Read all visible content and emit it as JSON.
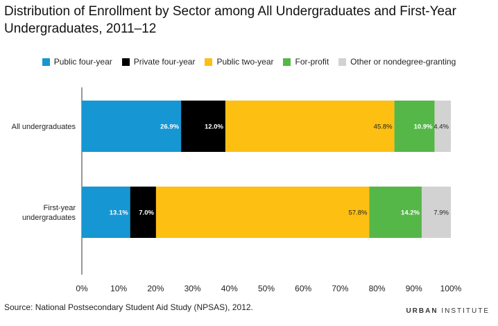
{
  "title": "Distribution of Enrollment by Sector among All Undergraduates and First-Year Undergraduates, 2011–12",
  "source": "Source: National Postsecondary Student Aid Study (NPSAS), 2012.",
  "brand": {
    "bold": "URBAN",
    "light": "INSTITUTE"
  },
  "colors": {
    "Public four-year": "#1696d2",
    "Private four-year": "#000000",
    "Public two-year": "#fdbf11",
    "For-profit": "#55b748",
    "Other or nondegree-granting": "#d2d2d2"
  },
  "chart_data": {
    "type": "bar",
    "orientation": "horizontal",
    "stacked": true,
    "title": "Distribution of Enrollment by Sector among All Undergraduates and First-Year Undergraduates, 2011–12",
    "categories": [
      "All undergraduates",
      "First-year undergraduates"
    ],
    "series": [
      {
        "name": "Public four-year",
        "values": [
          26.9,
          13.1
        ],
        "labels": [
          "26.9%",
          "13.1%"
        ]
      },
      {
        "name": "Private four-year",
        "values": [
          12.0,
          7.0
        ],
        "labels": [
          "12.0%",
          "7.0%"
        ]
      },
      {
        "name": "Public two-year",
        "values": [
          45.8,
          57.8
        ],
        "labels": [
          "45.8%",
          "57.8%"
        ]
      },
      {
        "name": "For-profit",
        "values": [
          10.9,
          14.2
        ],
        "labels": [
          "10.9%",
          "14.2%"
        ]
      },
      {
        "name": "Other or nondegree-granting",
        "values": [
          4.4,
          7.9
        ],
        "labels": [
          "4.4%",
          "7.9%"
        ]
      }
    ],
    "xlim": [
      0,
      100
    ],
    "xticks": [
      "0%",
      "10%",
      "20%",
      "30%",
      "40%",
      "50%",
      "60%",
      "70%",
      "80%",
      "90%",
      "100%"
    ],
    "legend": "top-center",
    "grid": false
  }
}
